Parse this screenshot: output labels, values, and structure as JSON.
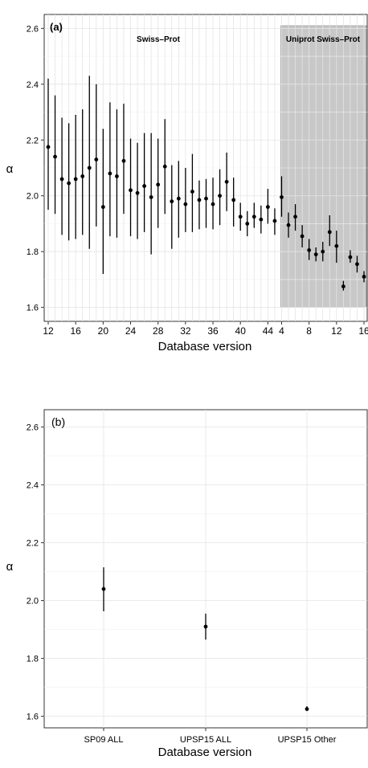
{
  "chart_data": [
    {
      "type": "scatter",
      "panel_label": "(a)",
      "xlabel": "Database version",
      "ylabel": "α",
      "ylim": [
        1.55,
        2.65
      ],
      "y_ticks": [
        1.6,
        1.8,
        2.0,
        2.2,
        2.4,
        2.6
      ],
      "y_tick_labels": [
        "1.6",
        "1.8",
        "2.0",
        "2.2",
        "2.4",
        "2.6"
      ],
      "x_tick_labels": [
        "12",
        "16",
        "20",
        "24",
        "28",
        "32",
        "36",
        "40",
        "44",
        "4",
        "8",
        "12",
        "16"
      ],
      "region_labels": [
        "Swiss–Prot",
        "Uniprot Swiss–Prot"
      ],
      "series": [
        {
          "name": "Swiss–Prot",
          "x": [
            12,
            13,
            14,
            15,
            16,
            17,
            18,
            19,
            20,
            21,
            22,
            23,
            24,
            25,
            26,
            27,
            28,
            29,
            30,
            31,
            32,
            33,
            34,
            35,
            36,
            37,
            38,
            39,
            40,
            41,
            42,
            43,
            44,
            45
          ],
          "values": [
            2.175,
            2.14,
            2.06,
            2.045,
            2.06,
            2.07,
            2.1,
            2.13,
            1.96,
            2.08,
            2.07,
            2.125,
            2.02,
            2.01,
            2.035,
            1.995,
            2.04,
            2.105,
            1.98,
            1.99,
            1.97,
            2.015,
            1.985,
            1.99,
            1.97,
            2.0,
            2.05,
            1.985,
            1.925,
            1.9,
            1.925,
            1.915,
            1.96,
            1.91
          ],
          "lower": [
            1.95,
            1.935,
            1.86,
            1.84,
            1.845,
            1.86,
            1.81,
            1.89,
            1.72,
            1.855,
            1.85,
            1.935,
            1.855,
            1.845,
            1.87,
            1.79,
            1.885,
            1.935,
            1.81,
            1.85,
            1.87,
            1.87,
            1.88,
            1.885,
            1.88,
            1.895,
            1.945,
            1.89,
            1.875,
            1.855,
            1.885,
            1.865,
            1.9,
            1.86
          ],
          "upper": [
            2.42,
            2.36,
            2.28,
            2.26,
            2.29,
            2.31,
            2.43,
            2.4,
            2.24,
            2.335,
            2.31,
            2.33,
            2.205,
            2.19,
            2.225,
            2.225,
            2.205,
            2.275,
            2.11,
            2.125,
            2.1,
            2.15,
            2.055,
            2.06,
            2.065,
            2.095,
            2.155,
            2.065,
            1.975,
            1.945,
            1.975,
            1.965,
            2.025,
            1.955
          ]
        },
        {
          "name": "Uniprot Swiss–Prot",
          "x": [
            4,
            5,
            6,
            7,
            8,
            9,
            10,
            11,
            12,
            13,
            14,
            15,
            16
          ],
          "values": [
            1.995,
            1.895,
            1.925,
            1.855,
            1.805,
            1.79,
            1.8,
            1.87,
            1.82,
            1.675,
            1.78,
            1.755,
            1.71
          ],
          "lower": [
            1.925,
            1.85,
            1.875,
            1.815,
            1.77,
            1.765,
            1.765,
            1.82,
            1.76,
            1.66,
            1.76,
            1.725,
            1.69
          ],
          "upper": [
            2.07,
            1.94,
            1.97,
            1.895,
            1.845,
            1.815,
            1.835,
            1.93,
            1.875,
            1.695,
            1.805,
            1.785,
            1.73
          ]
        }
      ],
      "shaded_region_color": "#c8c8c8",
      "grid": true
    },
    {
      "type": "scatter",
      "panel_label": "(b)",
      "xlabel": "Database version",
      "ylabel": "α",
      "ylim": [
        1.56,
        2.66
      ],
      "y_ticks": [
        1.6,
        1.8,
        2.0,
        2.2,
        2.4,
        2.6
      ],
      "y_tick_labels": [
        "1.6",
        "1.8",
        "2.0",
        "2.2",
        "2.4",
        "2.6"
      ],
      "categories": [
        "SP09 ALL",
        "UPSP15 ALL",
        "UPSP15 Other"
      ],
      "values": [
        2.04,
        1.91,
        1.625
      ],
      "lower": [
        1.963,
        1.865,
        1.618
      ],
      "upper": [
        2.115,
        1.955,
        1.635
      ],
      "grid": true
    }
  ]
}
